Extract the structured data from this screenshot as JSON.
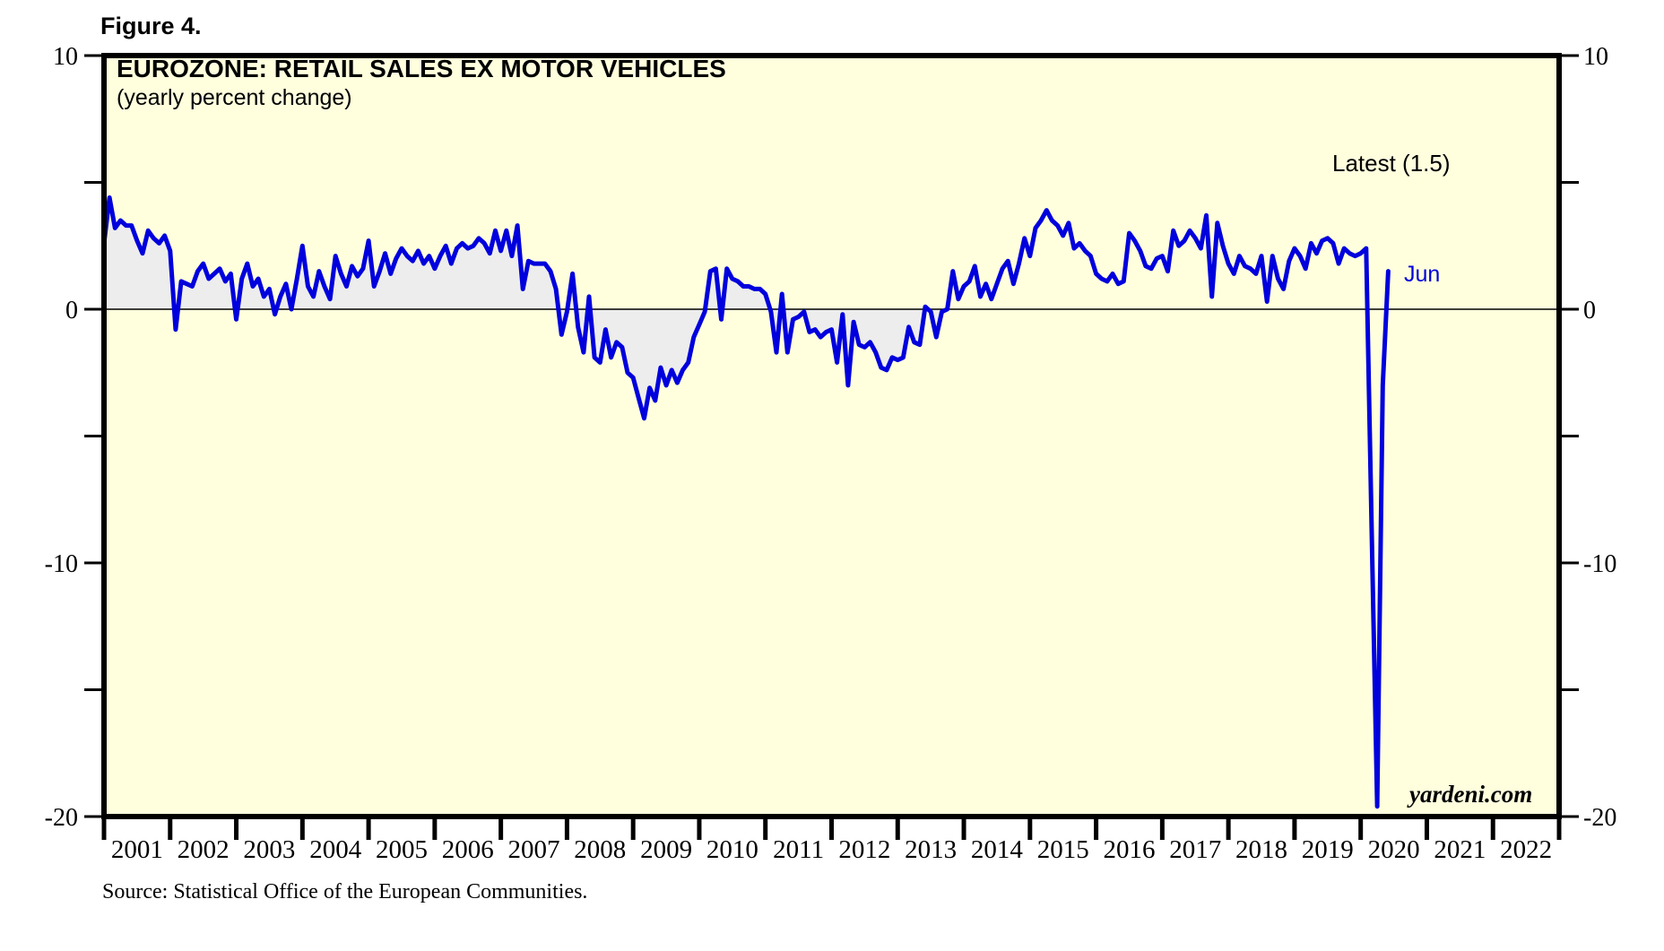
{
  "figure_label": "Figure 4.",
  "chart_data": {
    "type": "line",
    "title": "EUROZONE: RETAIL SALES EX MOTOR VEHICLES",
    "subtitle": "(yearly percent change)",
    "annotations": {
      "latest": "Latest (1.5)",
      "last_point": "Jun"
    },
    "watermark": "yardeni.com",
    "source": "Source: Statistical Office of the European Communities.",
    "ylim": [
      -20,
      10
    ],
    "y_ticks": [
      10,
      5,
      0,
      -5,
      -10,
      -15,
      -20
    ],
    "y_labeled_ticks": [
      10,
      0,
      -10,
      -20
    ],
    "x_years": [
      2001,
      2002,
      2003,
      2004,
      2005,
      2006,
      2007,
      2008,
      2009,
      2010,
      2011,
      2012,
      2013,
      2014,
      2015,
      2016,
      2017,
      2018,
      2019,
      2020,
      2021,
      2022
    ],
    "grid": "zero-baseline-only",
    "legend_position": "none",
    "baseline_fill_end_index": 153,
    "colors": {
      "line": "#0000dd",
      "plot_background": "#ffffde",
      "baseline_fill": "#ededed",
      "frame": "#000000",
      "zero_line": "#000000",
      "annotation_blue": "#0000dd",
      "text": "#000000"
    },
    "series": [
      {
        "name": "Eurozone retail sales ex motor vehicles, yearly percent change",
        "start_month": "Jan 2001",
        "end_month": "Jun 2020",
        "latest_value": 1.5,
        "data": [
          {
            "year": 2001,
            "values": [
              2.6,
              4.4,
              3.2,
              3.5,
              3.3,
              3.3,
              2.7,
              2.2,
              3.1,
              2.8,
              2.6,
              2.9
            ]
          },
          {
            "year": 2002,
            "values": [
              2.3,
              -0.8,
              1.1,
              1.0,
              0.9,
              1.5,
              1.8,
              1.2,
              1.4,
              1.6,
              1.1,
              1.4
            ]
          },
          {
            "year": 2003,
            "values": [
              -0.4,
              1.2,
              1.8,
              0.9,
              1.2,
              0.5,
              0.8,
              -0.2,
              0.5,
              1.0,
              0.0,
              1.2
            ]
          },
          {
            "year": 2004,
            "values": [
              2.5,
              0.9,
              0.5,
              1.5,
              0.9,
              0.4,
              2.1,
              1.4,
              0.9,
              1.7,
              1.3,
              1.6
            ]
          },
          {
            "year": 2005,
            "values": [
              2.7,
              0.9,
              1.5,
              2.2,
              1.4,
              2.0,
              2.4,
              2.1,
              1.9,
              2.3,
              1.8,
              2.1
            ]
          },
          {
            "year": 2006,
            "values": [
              1.6,
              2.1,
              2.5,
              1.8,
              2.4,
              2.6,
              2.4,
              2.5,
              2.8,
              2.6,
              2.2,
              3.1
            ]
          },
          {
            "year": 2007,
            "values": [
              2.3,
              3.1,
              2.1,
              3.3,
              0.8,
              1.9,
              1.8,
              1.8,
              1.8,
              1.5,
              0.8,
              -1.0
            ]
          },
          {
            "year": 2008,
            "values": [
              -0.1,
              1.4,
              -0.7,
              -1.7,
              0.5,
              -1.9,
              -2.1,
              -0.8,
              -1.9,
              -1.3,
              -1.5,
              -2.5
            ]
          },
          {
            "year": 2009,
            "values": [
              -2.7,
              -3.5,
              -4.3,
              -3.1,
              -3.6,
              -2.3,
              -3.0,
              -2.4,
              -2.9,
              -2.4,
              -2.1,
              -1.1
            ]
          },
          {
            "year": 2010,
            "values": [
              -0.6,
              -0.1,
              1.5,
              1.6,
              -0.4,
              1.6,
              1.2,
              1.1,
              0.9,
              0.9,
              0.8,
              0.8
            ]
          },
          {
            "year": 2011,
            "values": [
              0.6,
              -0.1,
              -1.7,
              0.6,
              -1.7,
              -0.4,
              -0.3,
              -0.1,
              -0.9,
              -0.8,
              -1.1,
              -0.9
            ]
          },
          {
            "year": 2012,
            "values": [
              -0.8,
              -2.1,
              -0.2,
              -3.0,
              -0.5,
              -1.4,
              -1.5,
              -1.3,
              -1.7,
              -2.3,
              -2.4,
              -1.9
            ]
          },
          {
            "year": 2013,
            "values": [
              -2.0,
              -1.9,
              -0.7,
              -1.3,
              -1.4,
              0.1,
              -0.1,
              -1.1,
              -0.1,
              0.0,
              1.5,
              0.4
            ]
          },
          {
            "year": 2014,
            "values": [
              0.9,
              1.1,
              1.7,
              0.5,
              1.0,
              0.4,
              1.0,
              1.6,
              1.9,
              1.0,
              1.8,
              2.8
            ]
          },
          {
            "year": 2015,
            "values": [
              2.1,
              3.2,
              3.5,
              3.9,
              3.5,
              3.3,
              2.9,
              3.4,
              2.4,
              2.6,
              2.3,
              2.1
            ]
          },
          {
            "year": 2016,
            "values": [
              1.4,
              1.2,
              1.1,
              1.4,
              1.0,
              1.1,
              3.0,
              2.7,
              2.3,
              1.7,
              1.6,
              2.0
            ]
          },
          {
            "year": 2017,
            "values": [
              2.1,
              1.5,
              3.1,
              2.5,
              2.7,
              3.1,
              2.8,
              2.4,
              3.7,
              0.5,
              3.4,
              2.5
            ]
          },
          {
            "year": 2018,
            "values": [
              1.8,
              1.4,
              2.1,
              1.7,
              1.6,
              1.4,
              2.1,
              0.3,
              2.1,
              1.2,
              0.8,
              1.9
            ]
          },
          {
            "year": 2019,
            "values": [
              2.4,
              2.1,
              1.6,
              2.6,
              2.2,
              2.7,
              2.8,
              2.6,
              1.8,
              2.4,
              2.2,
              2.1
            ]
          },
          {
            "year": 2020,
            "values": [
              2.2,
              2.4,
              -8.8,
              -19.6,
              -3.0,
              1.5
            ]
          }
        ]
      }
    ]
  }
}
